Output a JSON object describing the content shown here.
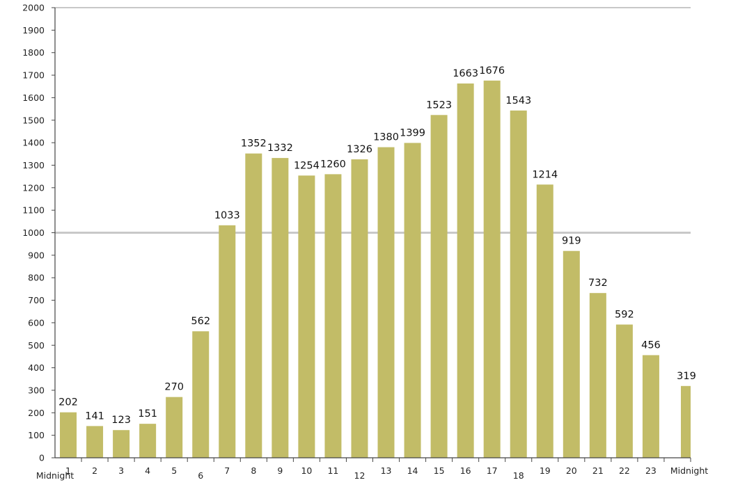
{
  "chart_data": {
    "type": "bar",
    "categories": [
      "1",
      "2",
      "3",
      "4",
      "5",
      "6",
      "7",
      "8",
      "9",
      "10",
      "11",
      "12",
      "13",
      "14",
      "15",
      "16",
      "17",
      "18",
      "19",
      "20",
      "21",
      "22",
      "23",
      "Midnight"
    ],
    "values": [
      202,
      141,
      123,
      151,
      270,
      562,
      1033,
      1352,
      1332,
      1254,
      1260,
      1326,
      1380,
      1399,
      1523,
      1663,
      1676,
      1543,
      1214,
      919,
      732,
      592,
      456,
      319
    ],
    "data_labels": [
      "202",
      "141",
      "123",
      "151",
      "270",
      "562",
      "1033",
      "1352",
      "1332",
      "1254",
      "1260",
      "1326",
      "1380",
      "1399",
      "1523",
      "1663",
      "1676",
      "1543",
      "1214",
      "919",
      "732",
      "592",
      "456",
      "319"
    ],
    "start_label": "Midnight",
    "yticks": [
      "0",
      "100",
      "200",
      "300",
      "400",
      "500",
      "600",
      "700",
      "800",
      "900",
      "1000",
      "1100",
      "1200",
      "1300",
      "1400",
      "1500",
      "1600",
      "1700",
      "1800",
      "1900",
      "2000"
    ],
    "ylim": [
      0,
      2000
    ],
    "gridlines": [
      1000,
      2000
    ],
    "colors": {
      "bar": "#c2bc67",
      "grid": "#c8c8c8",
      "axis": "#444444"
    }
  }
}
